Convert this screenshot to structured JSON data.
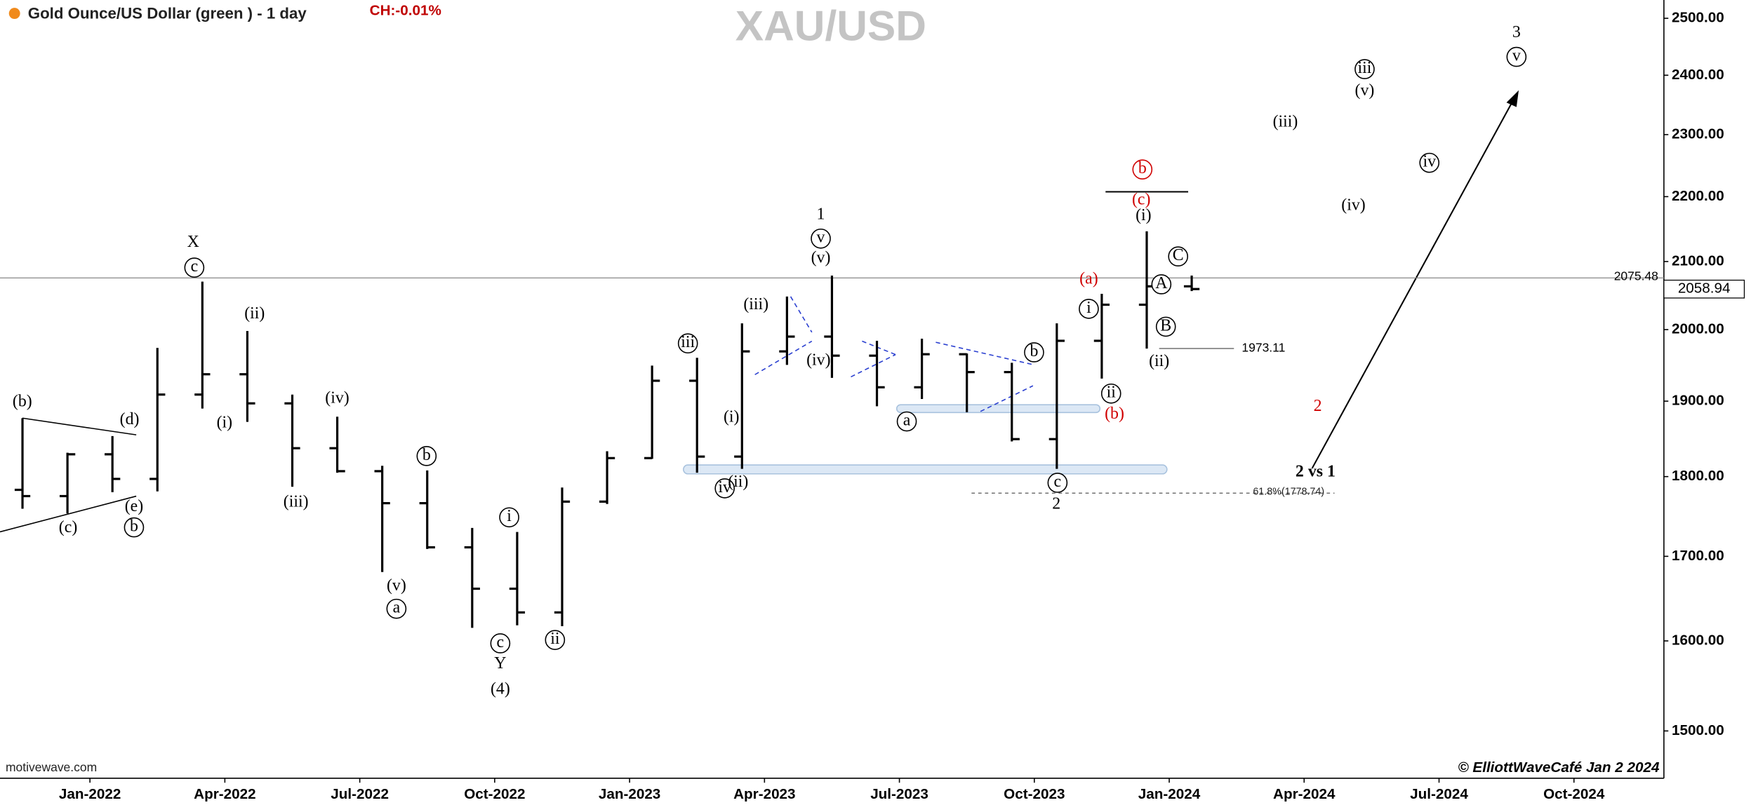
{
  "chart_data": {
    "type": "ohlc",
    "title": "XAU/USD",
    "symbol": "Gold Ounce/US Dollar (green ) - 1 day",
    "change": "CH:-0.01%",
    "source": "motivewave.com",
    "credit": "© ElliottWaveCafé Jan 2 2024",
    "x": [
      "2021-11",
      "2021-12",
      "2022-01",
      "2022-02",
      "2022-03",
      "2022-04",
      "2022-05",
      "2022-06",
      "2022-07",
      "2022-08",
      "2022-09",
      "2022-10",
      "2022-11",
      "2022-12",
      "2023-01",
      "2023-02",
      "2023-03",
      "2023-04",
      "2023-05",
      "2023-06",
      "2023-07",
      "2023-08",
      "2023-09",
      "2023-10",
      "2023-11",
      "2023-12",
      "2024-01"
    ],
    "open": [
      1783,
      1775,
      1829,
      1797,
      1909,
      1937,
      1897,
      1837,
      1807,
      1766,
      1711,
      1661,
      1633,
      1768,
      1824,
      1928,
      1826,
      1969,
      1990,
      1963,
      1919,
      1965,
      1940,
      1849,
      1984,
      2036,
      2063
    ],
    "high": [
      1877,
      1831,
      1853,
      1974,
      2070,
      1998,
      1909,
      1879,
      1814,
      1808,
      1735,
      1730,
      1786,
      1833,
      1949,
      1960,
      2009,
      2048,
      2079,
      1984,
      1987,
      1966,
      1953,
      2009,
      2052,
      2146,
      2079
    ],
    "low": [
      1759,
      1753,
      1780,
      1781,
      1890,
      1872,
      1787,
      1805,
      1681,
      1709,
      1615,
      1618,
      1617,
      1765,
      1823,
      1805,
      1810,
      1950,
      1932,
      1893,
      1903,
      1885,
      1846,
      1810,
      1931,
      1973,
      2056
    ],
    "close": [
      1775,
      1829,
      1797,
      1909,
      1937,
      1897,
      1837,
      1807,
      1766,
      1711,
      1661,
      1633,
      1768,
      1824,
      1928,
      1826,
      1969,
      1990,
      1963,
      1919,
      1965,
      1940,
      1849,
      1984,
      2036,
      2063,
      2059
    ],
    "color": "#000000",
    "log_scale": true,
    "grid": false,
    "ylim": [
      1450,
      2533
    ],
    "yticks": [
      {
        "value": 1500,
        "label": "1500.00"
      },
      {
        "value": 1600,
        "label": "1600.00"
      },
      {
        "value": 1700,
        "label": "1700.00"
      },
      {
        "value": 1800,
        "label": "1800.00"
      },
      {
        "value": 1900,
        "label": "1900.00"
      },
      {
        "value": 2000,
        "label": "2000.00"
      },
      {
        "value": 2100,
        "label": "2100.00"
      },
      {
        "value": 2200,
        "label": "2200.00"
      },
      {
        "value": 2300,
        "label": "2300.00"
      },
      {
        "value": 2400,
        "label": "2400.00"
      },
      {
        "value": 2500,
        "label": "2500.00"
      }
    ],
    "xlim": [
      "2021-11",
      "2024-12"
    ],
    "xticks": [
      {
        "value": "2022-01",
        "label": "Jan-2022"
      },
      {
        "value": "2022-04",
        "label": "Apr-2022"
      },
      {
        "value": "2022-07",
        "label": "Jul-2022"
      },
      {
        "value": "2022-10",
        "label": "Oct-2022"
      },
      {
        "value": "2023-01",
        "label": "Jan-2023"
      },
      {
        "value": "2023-04",
        "label": "Apr-2023"
      },
      {
        "value": "2023-07",
        "label": "Jul-2023"
      },
      {
        "value": "2023-10",
        "label": "Oct-2023"
      },
      {
        "value": "2024-01",
        "label": "Jan-2024"
      },
      {
        "value": "2024-04",
        "label": "Apr-2024"
      },
      {
        "value": "2024-07",
        "label": "Jul-2024"
      },
      {
        "value": "2024-10",
        "label": "Oct-2024"
      }
    ],
    "price_line": 2075.48,
    "last_price": 2058.94,
    "level": 1973.11,
    "fib_level": {
      "value": 1778.74,
      "label": "61.8%(1778.74)"
    },
    "wave_labels": [
      "(b)",
      "(c)",
      "(d)",
      "(e)",
      "b",
      "X",
      "c",
      "(i)",
      "(ii)",
      "(iii)",
      "(iv)",
      "(v)",
      "a",
      "b",
      "c",
      "Y",
      "(4)",
      "i",
      "ii",
      "iii",
      "iv",
      "(i)",
      "(ii)",
      "(iii)",
      "(iv)",
      "(v)",
      "v",
      "1",
      "a",
      "b",
      "c",
      "2",
      "i",
      "ii",
      "(b)",
      "(a)",
      "(i)",
      "(c)",
      "b",
      "A",
      "B",
      "C",
      "(ii)",
      "2",
      "2 vs 1",
      "(iii)",
      "(iv)",
      "iii",
      "(v)",
      "iv",
      "3",
      "v"
    ]
  }
}
